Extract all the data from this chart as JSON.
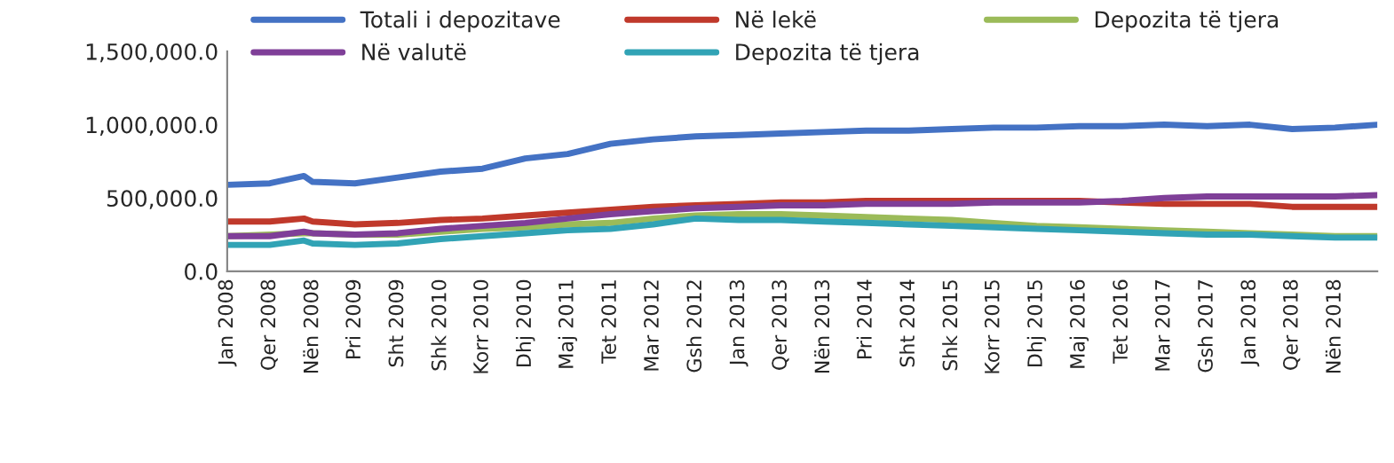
{
  "chart_data": {
    "type": "line",
    "ylim": [
      0,
      1500000
    ],
    "yticks": [
      {
        "value": 0,
        "label": "0.0"
      },
      {
        "value": 500000,
        "label": "500,000.0"
      },
      {
        "value": 1000000,
        "label": "1,000,000.0"
      },
      {
        "value": 1500000,
        "label": "1,500,000.0"
      }
    ],
    "xlim": [
      "2008-01",
      "2019-04"
    ],
    "xticks": [
      {
        "value": "2008-01",
        "label": "Jan 2008"
      },
      {
        "value": "2008-06",
        "label": "Qer 2008"
      },
      {
        "value": "2008-11",
        "label": "Nën 2008"
      },
      {
        "value": "2009-04",
        "label": "Pri 2009"
      },
      {
        "value": "2009-09",
        "label": "Sht 2009"
      },
      {
        "value": "2010-02",
        "label": "Shk 2010"
      },
      {
        "value": "2010-07",
        "label": "Korr 2010"
      },
      {
        "value": "2010-12",
        "label": "Dhj 2010"
      },
      {
        "value": "2011-05",
        "label": "Maj 2011"
      },
      {
        "value": "2011-10",
        "label": "Tet 2011"
      },
      {
        "value": "2012-03",
        "label": "Mar 2012"
      },
      {
        "value": "2012-08",
        "label": "Gsh 2012"
      },
      {
        "value": "2013-01",
        "label": "Jan 2013"
      },
      {
        "value": "2013-06",
        "label": "Qer 2013"
      },
      {
        "value": "2013-11",
        "label": "Nën 2013"
      },
      {
        "value": "2014-04",
        "label": "Pri 2014"
      },
      {
        "value": "2014-09",
        "label": "Sht 2014"
      },
      {
        "value": "2015-02",
        "label": "Shk 2015"
      },
      {
        "value": "2015-07",
        "label": "Korr 2015"
      },
      {
        "value": "2015-12",
        "label": "Dhj 2015"
      },
      {
        "value": "2016-05",
        "label": "Maj 2016"
      },
      {
        "value": "2016-10",
        "label": "Tet 2016"
      },
      {
        "value": "2017-03",
        "label": "Mar 2017"
      },
      {
        "value": "2017-08",
        "label": "Gsh 2017"
      },
      {
        "value": "2018-01",
        "label": "Jan 2018"
      },
      {
        "value": "2018-06",
        "label": "Qer 2018"
      },
      {
        "value": "2018-11",
        "label": "Nën 2018"
      }
    ],
    "x": [
      "2008-01",
      "2008-06",
      "2008-10",
      "2008-11",
      "2009-04",
      "2009-09",
      "2010-02",
      "2010-07",
      "2010-12",
      "2011-05",
      "2011-10",
      "2012-03",
      "2012-08",
      "2013-01",
      "2013-06",
      "2013-11",
      "2014-04",
      "2014-09",
      "2015-02",
      "2015-07",
      "2015-12",
      "2016-05",
      "2016-10",
      "2017-03",
      "2017-08",
      "2018-01",
      "2018-06",
      "2018-11",
      "2019-04"
    ],
    "series": [
      {
        "name": "Totali i depozitave",
        "color": "#4472c4",
        "values": [
          590000,
          600000,
          650000,
          610000,
          600000,
          640000,
          680000,
          700000,
          770000,
          800000,
          870000,
          900000,
          920000,
          930000,
          940000,
          950000,
          960000,
          960000,
          970000,
          980000,
          980000,
          990000,
          990000,
          1000000,
          990000,
          1000000,
          970000,
          980000,
          1000000
        ]
      },
      {
        "name": "Në lekë",
        "color": "#c0392b",
        "values": [
          340000,
          340000,
          360000,
          340000,
          320000,
          330000,
          350000,
          360000,
          380000,
          400000,
          420000,
          440000,
          450000,
          460000,
          470000,
          470000,
          480000,
          480000,
          480000,
          480000,
          480000,
          480000,
          470000,
          460000,
          460000,
          460000,
          440000,
          440000,
          440000
        ]
      },
      {
        "name": "Depozita të tjera",
        "color": "#9bbb59",
        "values": [
          240000,
          250000,
          260000,
          260000,
          250000,
          250000,
          270000,
          290000,
          300000,
          320000,
          330000,
          360000,
          380000,
          390000,
          390000,
          380000,
          370000,
          360000,
          350000,
          330000,
          310000,
          300000,
          290000,
          280000,
          270000,
          260000,
          250000,
          240000,
          240000
        ]
      },
      {
        "name": "Në valutë",
        "color": "#7f3f98",
        "values": [
          240000,
          240000,
          270000,
          260000,
          250000,
          260000,
          290000,
          310000,
          330000,
          360000,
          390000,
          410000,
          430000,
          440000,
          450000,
          450000,
          460000,
          460000,
          460000,
          470000,
          470000,
          470000,
          480000,
          500000,
          510000,
          510000,
          510000,
          510000,
          520000
        ]
      },
      {
        "name": "Depozita të tjera",
        "color": "#31a3b5",
        "values": [
          180000,
          180000,
          210000,
          190000,
          180000,
          190000,
          220000,
          240000,
          260000,
          280000,
          290000,
          320000,
          360000,
          350000,
          350000,
          340000,
          330000,
          320000,
          310000,
          300000,
          290000,
          280000,
          270000,
          260000,
          250000,
          250000,
          240000,
          230000,
          230000
        ]
      }
    ],
    "legend": "top",
    "grid": false
  }
}
